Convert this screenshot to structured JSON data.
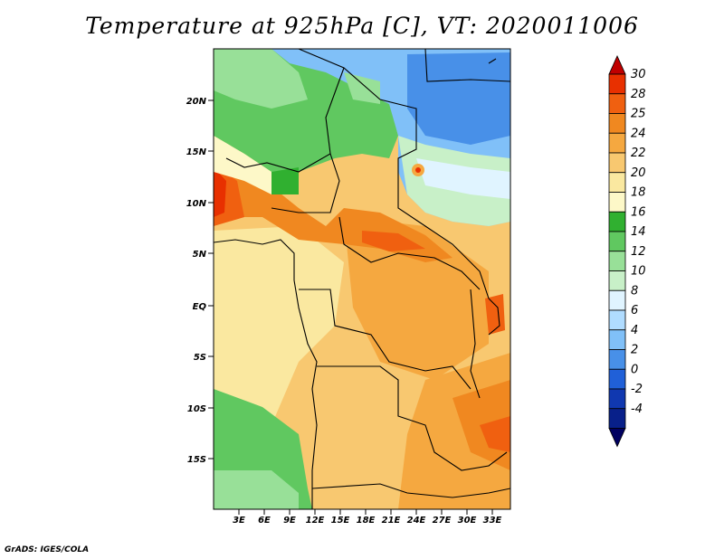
{
  "title": "Temperature at 925hPa [C], VT: 2020011006",
  "credit": "GrADS: IGES/COLA",
  "lat_labels": [
    "20N",
    "15N",
    "10N",
    "5N",
    "EQ",
    "5S",
    "10S",
    "15S"
  ],
  "lon_labels": [
    "3E",
    "6E",
    "9E",
    "12E",
    "15E",
    "18E",
    "21E",
    "24E",
    "27E",
    "30E",
    "33E"
  ],
  "colorbar": {
    "labels": [
      "30",
      "28",
      "25",
      "24",
      "22",
      "20",
      "18",
      "16",
      "14",
      "12",
      "10",
      "8",
      "6",
      "4",
      "2",
      "0",
      "-2",
      "-4"
    ],
    "colors": [
      "#c00000",
      "#e83000",
      "#f06010",
      "#f08820",
      "#f5a840",
      "#f8c870",
      "#fae8a0",
      "#fdf8c8",
      "#30b030",
      "#60c860",
      "#98e098",
      "#c8f0c8",
      "#e0f4ff",
      "#b0dcff",
      "#80c0f8",
      "#4890e8",
      "#2060d8",
      "#1038b0",
      "#08208a",
      "#000060"
    ]
  },
  "chart_data": {
    "type": "heatmap",
    "title": "Temperature at 925hPa [C], VT: 2020011006",
    "variable": "Temperature at 925hPa",
    "units": "C",
    "valid_time": "2020011006",
    "lon_range": [
      0,
      36
    ],
    "lat_range": [
      -20,
      24
    ],
    "color_levels": [
      -4,
      -2,
      0,
      2,
      4,
      6,
      8,
      10,
      12,
      14,
      16,
      18,
      20,
      22,
      24,
      25,
      28,
      30
    ]
  }
}
